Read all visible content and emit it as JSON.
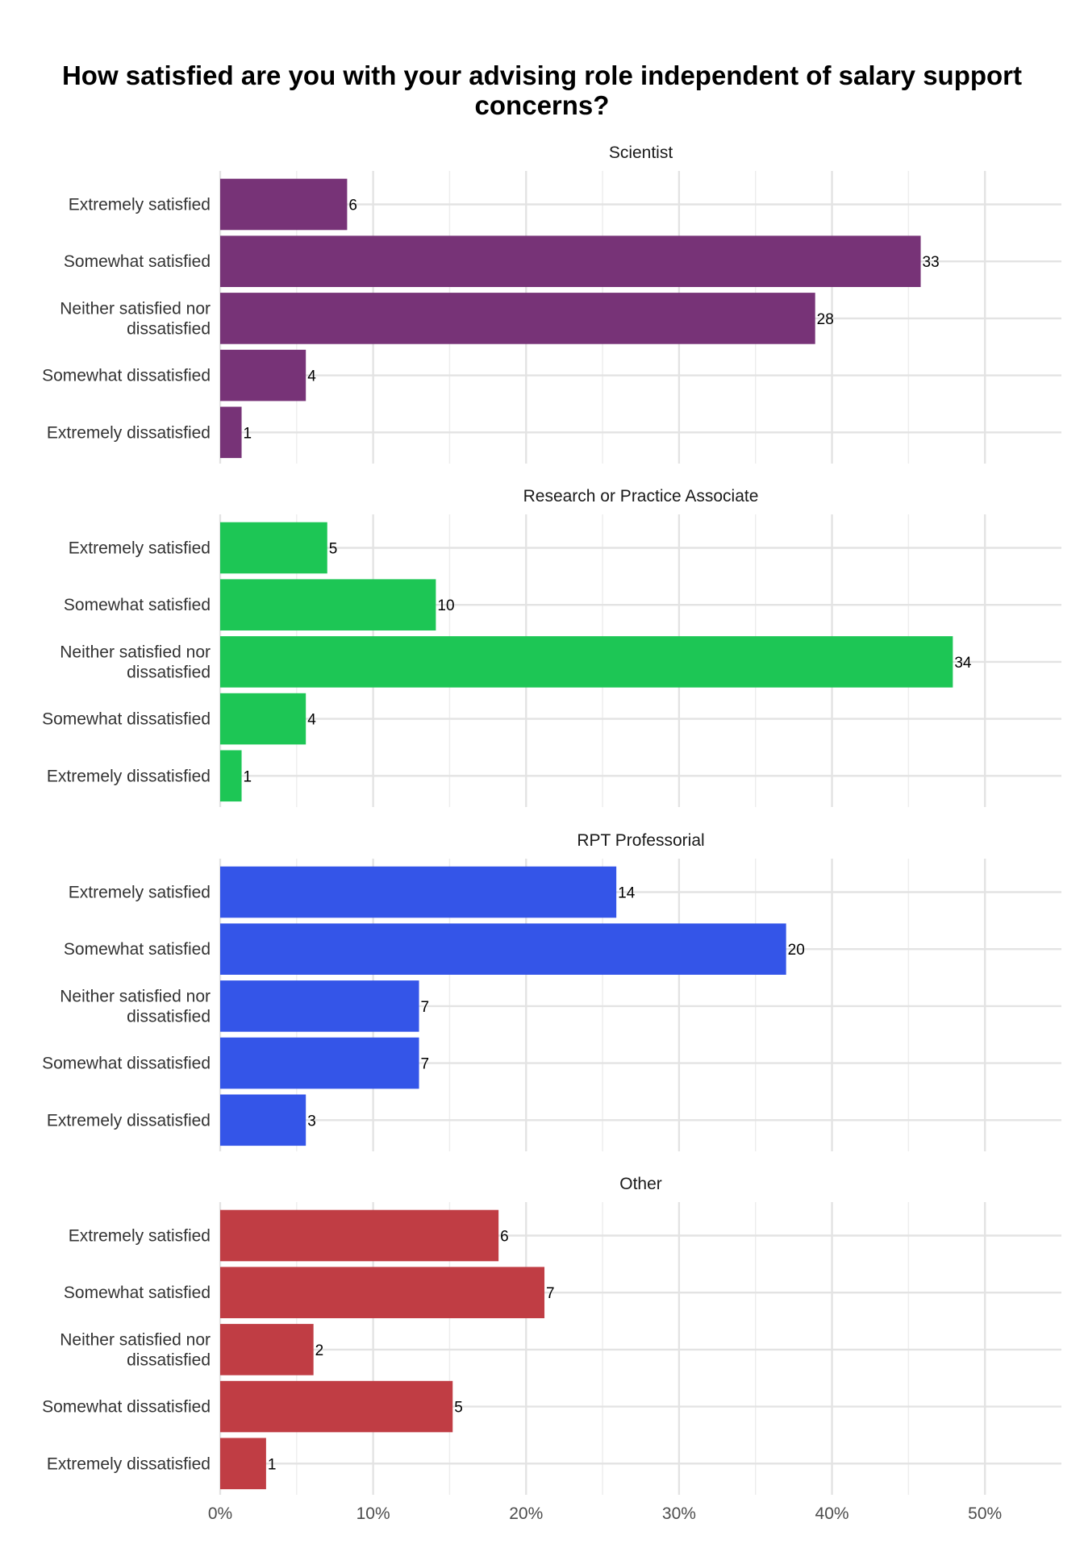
{
  "chart_data": {
    "type": "bar",
    "orientation": "horizontal",
    "title_lines": [
      "How satisfied are you with your advising role independent of salary support",
      "concerns?"
    ],
    "x_ticks": [
      "0%",
      "10%",
      "20%",
      "30%",
      "40%",
      "50%"
    ],
    "x_tick_values": [
      0,
      10,
      20,
      30,
      40,
      50
    ],
    "xlim": [
      0,
      55
    ],
    "categories": [
      "Extremely satisfied",
      "Somewhat satisfied",
      "Neither satisfied nor dissatisfied",
      "Somewhat dissatisfied",
      "Extremely dissatisfied"
    ],
    "category_label_lines": [
      [
        "Extremely satisfied"
      ],
      [
        "Somewhat satisfied"
      ],
      [
        "Neither satisfied nor",
        "dissatisfied"
      ],
      [
        "Somewhat dissatisfied"
      ],
      [
        "Extremely dissatisfied"
      ]
    ],
    "grid": true,
    "facets": [
      {
        "name": "Scientist",
        "color": "#773377",
        "counts": [
          6,
          33,
          28,
          4,
          1
        ],
        "percent": [
          8.3,
          45.8,
          38.9,
          5.6,
          1.4
        ]
      },
      {
        "name": "Research or Practice Associate",
        "color": "#1DC655",
        "counts": [
          5,
          10,
          34,
          4,
          1
        ],
        "percent": [
          7.0,
          14.1,
          47.9,
          5.6,
          1.4
        ]
      },
      {
        "name": "RPT Professorial",
        "color": "#3455E8",
        "counts": [
          14,
          20,
          7,
          7,
          3
        ],
        "percent": [
          25.9,
          37.0,
          13.0,
          13.0,
          5.6
        ]
      },
      {
        "name": "Other",
        "color": "#C03D44",
        "counts": [
          6,
          7,
          2,
          5,
          1
        ],
        "percent": [
          18.2,
          21.2,
          6.1,
          15.2,
          3.0
        ]
      }
    ]
  }
}
